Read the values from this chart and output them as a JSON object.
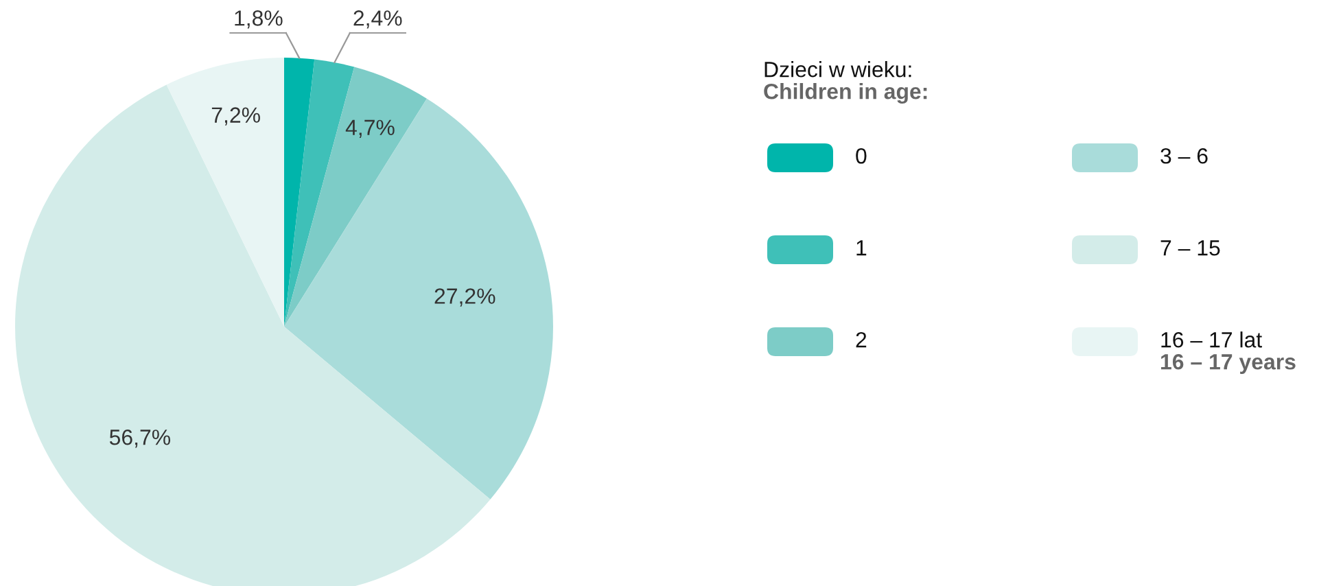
{
  "chart_data": {
    "type": "pie",
    "legend_title": "Dzieci w wieku:\nChildren in age:",
    "categories": [
      "0",
      "1",
      "2",
      "3 – 6",
      "7 – 15",
      "16 – 17 lat\n16 – 17 years"
    ],
    "values": [
      1.8,
      2.4,
      4.7,
      27.2,
      56.7,
      7.2
    ],
    "colors": [
      "#00b5ab",
      "#3fc0b8",
      "#7dccc7",
      "#a9dcda",
      "#d3ece9",
      "#e8f5f4"
    ],
    "value_labels": [
      "1,8%",
      "2,4%",
      "4,7%",
      "27,2%",
      "56,7%",
      "7,2%"
    ],
    "legend": "right"
  }
}
